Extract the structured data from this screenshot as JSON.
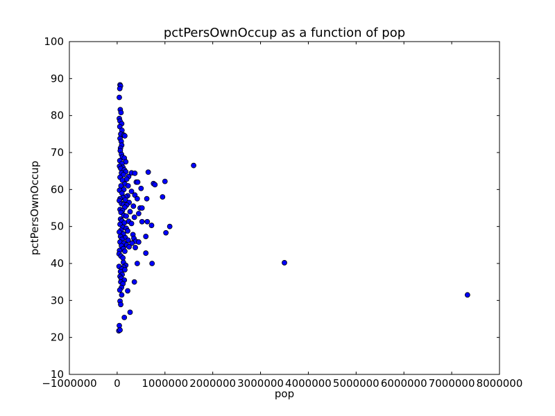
{
  "chart_data": {
    "type": "scatter",
    "title": "pctPersOwnOccup as a function of pop",
    "xlabel": "pop",
    "ylabel": "pctPersOwnOccup",
    "xlim": [
      -1000000,
      8000000
    ],
    "ylim": [
      10,
      100
    ],
    "xticks": [
      -1000000,
      0,
      1000000,
      2000000,
      3000000,
      4000000,
      5000000,
      6000000,
      7000000,
      8000000
    ],
    "xtick_labels": [
      "−1000000",
      "0",
      "1000000",
      "2000000",
      "3000000",
      "4000000",
      "5000000",
      "6000000",
      "7000000",
      "8000000"
    ],
    "yticks": [
      10,
      20,
      30,
      40,
      50,
      60,
      70,
      80,
      90,
      100
    ],
    "ytick_labels": [
      "10",
      "20",
      "30",
      "40",
      "50",
      "60",
      "70",
      "80",
      "90",
      "100"
    ],
    "grid": false,
    "marker_color": "#0000ff",
    "marker_edge": "#000000",
    "series": [
      {
        "points": [
          [
            60000,
            88.3
          ],
          [
            70000,
            88.0
          ],
          [
            55000,
            87.3
          ],
          [
            45000,
            84.9
          ],
          [
            65000,
            81.6
          ],
          [
            80000,
            80.8
          ],
          [
            45000,
            79.2
          ],
          [
            60000,
            78.5
          ],
          [
            95000,
            77.8
          ],
          [
            55000,
            77.0
          ],
          [
            100000,
            76.0
          ],
          [
            75000,
            75.0
          ],
          [
            140000,
            74.7
          ],
          [
            160000,
            74.5
          ],
          [
            60000,
            73.8
          ],
          [
            85000,
            73.0
          ],
          [
            95000,
            72.0
          ],
          [
            70000,
            71.2
          ],
          [
            65000,
            70.5
          ],
          [
            90000,
            69.5
          ],
          [
            110000,
            68.8
          ],
          [
            150000,
            68.5
          ],
          [
            55000,
            67.8
          ],
          [
            180000,
            67.5
          ],
          [
            100000,
            67.0
          ],
          [
            50000,
            66.3
          ],
          [
            120000,
            66.0
          ],
          [
            75000,
            65.7
          ],
          [
            150000,
            65.3
          ],
          [
            180000,
            64.8
          ],
          [
            90000,
            64.5
          ],
          [
            300000,
            64.5
          ],
          [
            370000,
            64.4
          ],
          [
            650000,
            64.7
          ],
          [
            1600000,
            66.5
          ],
          [
            130000,
            64.0
          ],
          [
            240000,
            63.5
          ],
          [
            60000,
            63.3
          ],
          [
            200000,
            62.8
          ],
          [
            110000,
            62.5
          ],
          [
            400000,
            62.0
          ],
          [
            430000,
            62.0
          ],
          [
            1000000,
            62.2
          ],
          [
            760000,
            61.6
          ],
          [
            790000,
            61.3
          ],
          [
            160000,
            61.5
          ],
          [
            80000,
            61.0
          ],
          [
            230000,
            61.0
          ],
          [
            500000,
            60.3
          ],
          [
            140000,
            60.0
          ],
          [
            50000,
            59.8
          ],
          [
            300000,
            59.5
          ],
          [
            100000,
            59.0
          ],
          [
            370000,
            58.5
          ],
          [
            220000,
            58.3
          ],
          [
            180000,
            58.0
          ],
          [
            950000,
            58.0
          ],
          [
            120000,
            57.8
          ],
          [
            60000,
            57.5
          ],
          [
            420000,
            57.5
          ],
          [
            620000,
            57.5
          ],
          [
            170000,
            57.2
          ],
          [
            45000,
            57.0
          ],
          [
            250000,
            56.5
          ],
          [
            90000,
            56.2
          ],
          [
            130000,
            56.0
          ],
          [
            200000,
            55.8
          ],
          [
            340000,
            55.5
          ],
          [
            160000,
            55.2
          ],
          [
            480000,
            55.0
          ],
          [
            520000,
            55.0
          ],
          [
            60000,
            54.6
          ],
          [
            110000,
            54.3
          ],
          [
            270000,
            54.0
          ],
          [
            450000,
            53.5
          ],
          [
            80000,
            53.8
          ],
          [
            140000,
            53.0
          ],
          [
            190000,
            52.8
          ],
          [
            360000,
            52.5
          ],
          [
            70000,
            52.0
          ],
          [
            100000,
            51.5
          ],
          [
            240000,
            51.4
          ],
          [
            520000,
            51.3
          ],
          [
            630000,
            51.3
          ],
          [
            150000,
            51.0
          ],
          [
            300000,
            50.8
          ],
          [
            60000,
            50.6
          ],
          [
            720000,
            50.3
          ],
          [
            1100000,
            50.0
          ],
          [
            120000,
            49.8
          ],
          [
            190000,
            49.5
          ],
          [
            80000,
            49.0
          ],
          [
            220000,
            48.8
          ],
          [
            45000,
            48.5
          ],
          [
            1020000,
            48.3
          ],
          [
            130000,
            48.0
          ],
          [
            330000,
            47.8
          ],
          [
            600000,
            47.3
          ],
          [
            70000,
            47.3
          ],
          [
            170000,
            47.0
          ],
          [
            350000,
            46.8
          ],
          [
            100000,
            46.5
          ],
          [
            230000,
            46.3
          ],
          [
            390000,
            46.0
          ],
          [
            450000,
            45.8
          ],
          [
            60000,
            45.8
          ],
          [
            140000,
            45.5
          ],
          [
            310000,
            45.5
          ],
          [
            200000,
            45.0
          ],
          [
            90000,
            44.8
          ],
          [
            250000,
            44.5
          ],
          [
            380000,
            44.3
          ],
          [
            130000,
            44.0
          ],
          [
            50000,
            43.5
          ],
          [
            160000,
            43.3
          ],
          [
            600000,
            42.8
          ],
          [
            40000,
            42.6
          ],
          [
            80000,
            42.0
          ],
          [
            120000,
            41.5
          ],
          [
            130000,
            40.3
          ],
          [
            420000,
            40.0
          ],
          [
            730000,
            40.0
          ],
          [
            3500000,
            40.2
          ],
          [
            180000,
            39.5
          ],
          [
            40000,
            39.2
          ],
          [
            140000,
            39.0
          ],
          [
            95000,
            38.5
          ],
          [
            160000,
            38.3
          ],
          [
            70000,
            37.8
          ],
          [
            105000,
            37.0
          ],
          [
            60000,
            36.5
          ],
          [
            85000,
            36.0
          ],
          [
            150000,
            35.5
          ],
          [
            75000,
            35.0
          ],
          [
            360000,
            35.0
          ],
          [
            120000,
            34.5
          ],
          [
            90000,
            33.5
          ],
          [
            55000,
            32.8
          ],
          [
            220000,
            32.6
          ],
          [
            95000,
            31.5
          ],
          [
            7330000,
            31.5
          ],
          [
            60000,
            29.8
          ],
          [
            75000,
            28.9
          ],
          [
            270000,
            26.8
          ],
          [
            150000,
            25.4
          ],
          [
            45000,
            23.2
          ],
          [
            35000,
            21.8
          ],
          [
            60000,
            22.0
          ]
        ]
      }
    ]
  }
}
